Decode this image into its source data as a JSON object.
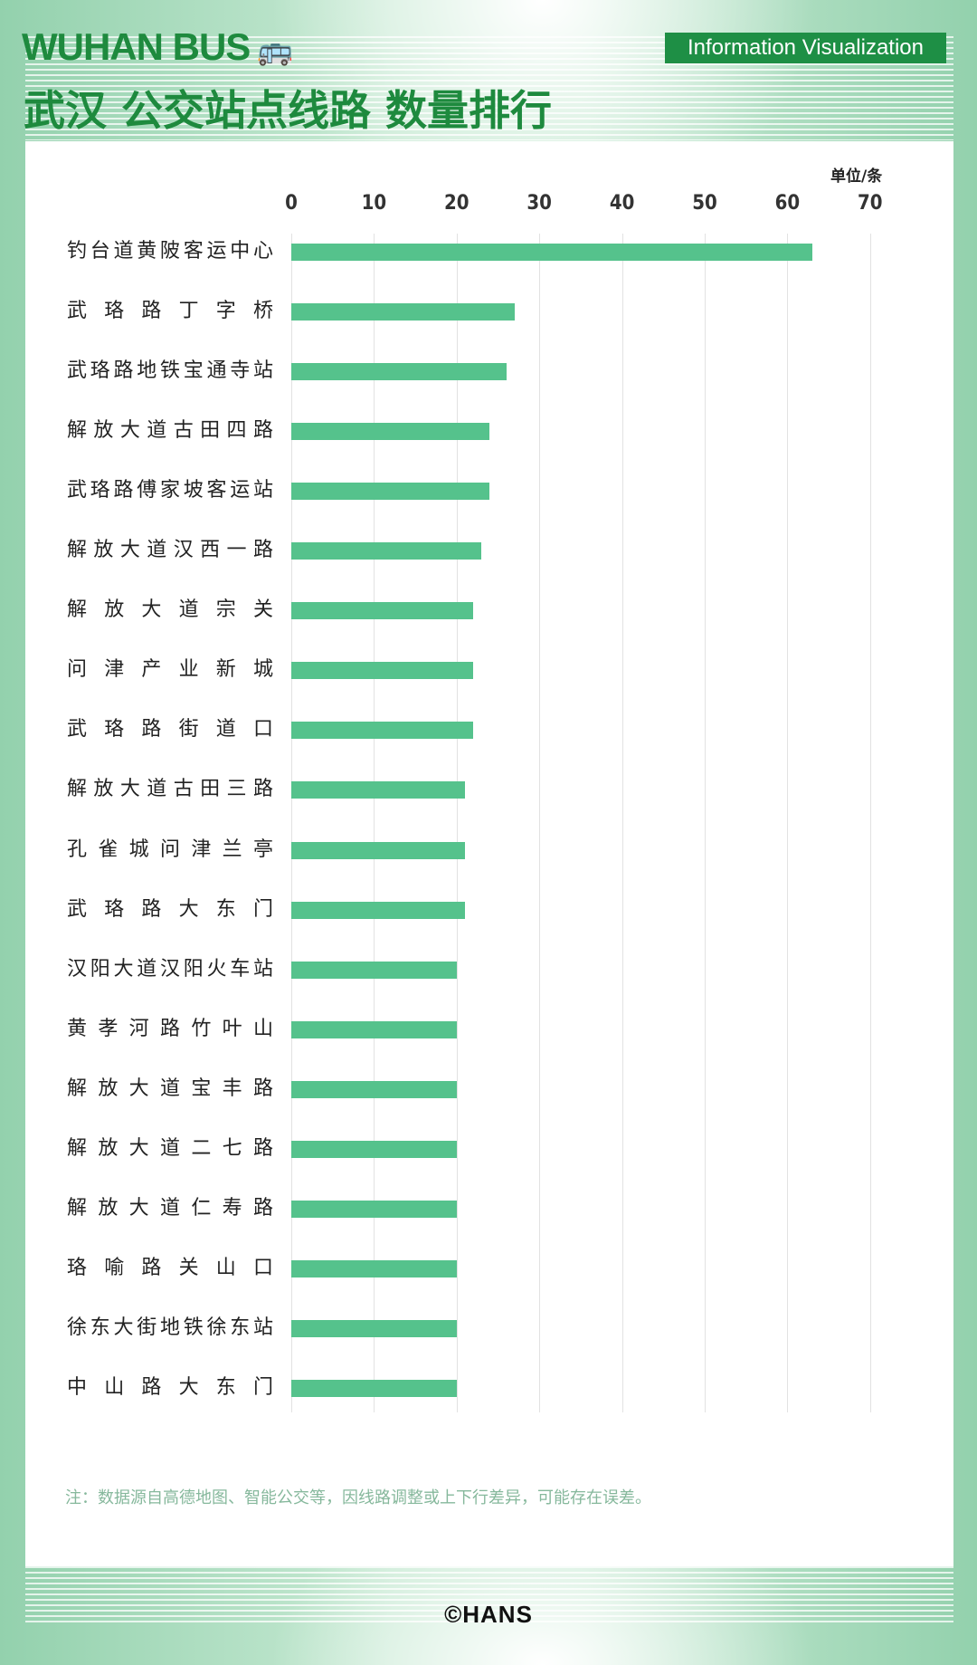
{
  "header": {
    "title_en": "WUHAN BUS",
    "bus_icon": "🚌",
    "title_cn": "武汉 公交站点线路 数量排行",
    "badge": "Information Visualization"
  },
  "colors": {
    "accent": "#1e8a3e",
    "bar": "#55c28c",
    "note": "#86b89c"
  },
  "chart_data": {
    "type": "bar",
    "orientation": "horizontal",
    "unit_label": "单位/条",
    "xlim": [
      0,
      70
    ],
    "ticks": [
      "0",
      "10",
      "20",
      "30",
      "40",
      "50",
      "60",
      "70"
    ],
    "grid": true,
    "categories": [
      "钓台道黄陂客运中心",
      "武珞路丁字桥",
      "武珞路地铁宝通寺站",
      "解放大道古田四路",
      "武珞路傅家坡客运站",
      "解放大道汉西一路",
      "解放大道宗关",
      "问津产业新城",
      "武珞路街道口",
      "解放大道古田三路",
      "孔雀城问津兰亭",
      "武珞路大东门",
      "汉阳大道汉阳火车站",
      "黄孝河路竹叶山",
      "解放大道宝丰路",
      "解放大道二七路",
      "解放大道仁寿路",
      "珞喻路关山口",
      "徐东大街地铁徐东站",
      "中山路大东门"
    ],
    "values": [
      63,
      27,
      26,
      24,
      24,
      23,
      22,
      22,
      22,
      21,
      21,
      21,
      20,
      20,
      20,
      20,
      20,
      20,
      20,
      20
    ]
  },
  "note": "注：数据源自高德地图、智能公交等，因线路调整或上下行差异，可能存在误差。",
  "footer": "©HANS"
}
